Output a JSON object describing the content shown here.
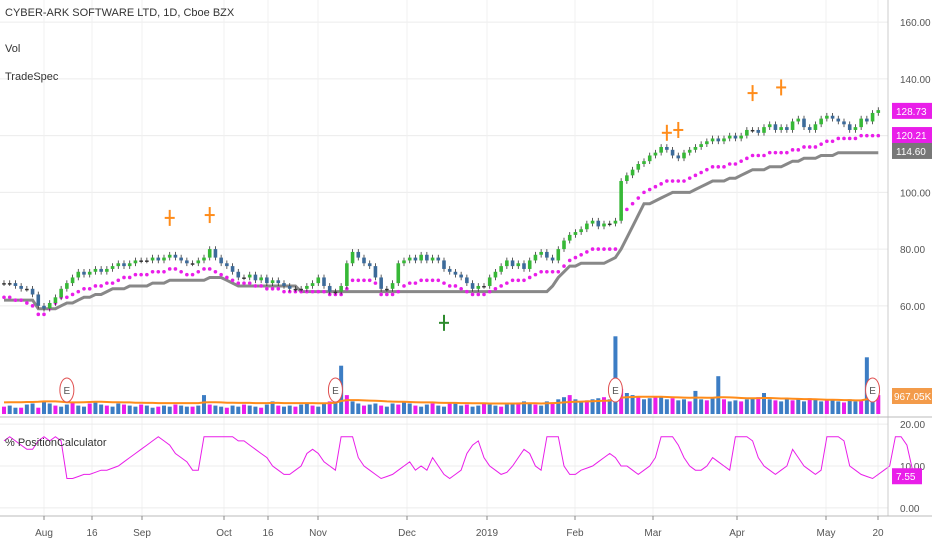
{
  "chart_data": [
    {
      "type": "line",
      "panel": "price",
      "title": "CYBER-ARK SOFTWARE LTD, 1D, Cboe BZX",
      "indicators": [
        "Vol",
        "TradeSpec"
      ],
      "ylim": [
        55,
        165
      ],
      "yticks": [
        "60.00",
        "80.00",
        "100.00",
        "120.00",
        "140.00",
        "160.00"
      ],
      "y_tick_values": [
        60,
        80,
        100,
        120,
        140,
        160
      ],
      "price_labels": [
        {
          "text": "128.73",
          "value": 128.73,
          "color": "#e91ee9"
        },
        {
          "text": "120.21",
          "value": 120.21,
          "color": "#e91ee9"
        },
        {
          "text": "114.60",
          "value": 114.6,
          "color": "#777777"
        }
      ],
      "close": [
        68,
        68,
        67,
        66,
        66,
        64,
        60,
        59,
        61,
        63,
        66,
        68,
        70,
        72,
        71,
        72,
        73,
        72,
        73,
        74,
        75,
        74,
        75,
        76,
        76,
        76,
        77,
        76,
        77,
        78,
        77,
        76,
        75,
        75,
        76,
        77,
        80,
        77,
        75,
        74,
        72,
        70,
        70,
        71,
        69,
        70,
        68,
        69,
        68,
        67,
        66,
        66,
        66,
        67,
        68,
        70,
        67,
        65,
        65,
        67,
        75,
        79,
        77,
        75,
        74,
        70,
        66,
        66,
        68,
        75,
        76,
        77,
        76,
        78,
        76,
        77,
        76,
        73,
        72,
        71,
        70,
        68,
        66,
        67,
        67,
        70,
        72,
        74,
        76,
        74,
        75,
        73,
        76,
        78,
        79,
        77,
        76,
        80,
        83,
        85,
        86,
        87,
        89,
        90,
        88,
        89,
        89,
        90,
        104,
        106,
        108,
        110,
        111,
        113,
        114,
        116,
        115,
        113,
        112,
        114,
        115,
        116,
        117,
        118,
        119,
        118,
        119,
        120,
        119,
        120,
        122,
        122,
        121,
        123,
        124,
        122,
        123,
        122,
        125,
        126,
        123,
        122,
        124,
        126,
        127,
        126,
        125,
        124,
        122,
        123,
        126,
        125,
        128,
        129
      ],
      "stop_magenta": [
        63,
        63,
        62,
        62,
        61,
        60,
        57,
        57,
        59,
        61,
        63,
        63,
        64,
        65,
        66,
        66,
        67,
        67,
        68,
        68,
        69,
        70,
        70,
        71,
        71,
        71,
        72,
        72,
        72,
        73,
        73,
        72,
        71,
        71,
        72,
        73,
        73,
        72,
        71,
        70,
        69,
        68,
        68,
        68,
        67,
        67,
        66,
        66,
        66,
        65,
        65,
        65,
        65,
        65,
        65,
        65,
        65,
        64,
        64,
        64,
        66,
        69,
        69,
        69,
        69,
        68,
        64,
        64,
        64,
        65,
        67,
        68,
        68,
        69,
        69,
        69,
        69,
        68,
        67,
        67,
        66,
        65,
        64,
        64,
        64,
        65,
        66,
        67,
        68,
        69,
        69,
        69,
        70,
        71,
        72,
        72,
        72,
        72,
        74,
        76,
        77,
        78,
        79,
        80,
        80,
        80,
        80,
        80,
        92,
        94,
        96,
        98,
        100,
        101,
        102,
        103,
        104,
        104,
        104,
        104,
        105,
        106,
        107,
        108,
        109,
        109,
        109,
        110,
        110,
        111,
        112,
        113,
        113,
        113,
        114,
        114,
        114,
        114,
        115,
        115,
        116,
        116,
        116,
        117,
        118,
        118,
        119,
        119,
        119,
        119,
        120,
        120,
        120,
        120
      ],
      "stop_gray": [
        62,
        62,
        62,
        62,
        62,
        62,
        59,
        59,
        59,
        59,
        60,
        61,
        61,
        62,
        63,
        63,
        64,
        64,
        65,
        66,
        66,
        66,
        67,
        67,
        67,
        67,
        68,
        68,
        68,
        69,
        69,
        69,
        69,
        69,
        69,
        69,
        70,
        70,
        70,
        69,
        68,
        67,
        67,
        67,
        67,
        67,
        67,
        67,
        67,
        67,
        67,
        67,
        65,
        65,
        65,
        65,
        65,
        65,
        65,
        65,
        65,
        65,
        65,
        65,
        65,
        65,
        65,
        65,
        65,
        65,
        65,
        65,
        65,
        65,
        65,
        65,
        65,
        65,
        65,
        65,
        65,
        65,
        65,
        65,
        65,
        65,
        65,
        65,
        65,
        65,
        65,
        65,
        65,
        65,
        65,
        65,
        67,
        70,
        72,
        74,
        74,
        75,
        75,
        75,
        75,
        75,
        76,
        77,
        80,
        84,
        88,
        92,
        96,
        96,
        97,
        98,
        99,
        100,
        100,
        100,
        100,
        101,
        102,
        103,
        104,
        104,
        104,
        105,
        105,
        106,
        107,
        108,
        108,
        108,
        109,
        109,
        109,
        110,
        111,
        111,
        112,
        112,
        112,
        113,
        113,
        113,
        114,
        114,
        114,
        114,
        114,
        114,
        114,
        114
      ],
      "markers": [
        {
          "type": "cross",
          "color": "#ff8c1a",
          "bar": 29,
          "value": 91
        },
        {
          "type": "cross",
          "color": "#ff8c1a",
          "bar": 36,
          "value": 92
        },
        {
          "type": "cross",
          "color": "#ff8c1a",
          "bar": 116,
          "value": 121
        },
        {
          "type": "cross",
          "color": "#ff8c1a",
          "bar": 118,
          "value": 122
        },
        {
          "type": "cross",
          "color": "#ff8c1a",
          "bar": 131,
          "value": 135
        },
        {
          "type": "cross",
          "color": "#ff8c1a",
          "bar": 136,
          "value": 137
        },
        {
          "type": "cross",
          "color": "#2e8b2e",
          "bar": 77,
          "value": 54
        }
      ]
    },
    {
      "type": "bar",
      "panel": "volume",
      "badge": "967.05K",
      "earnings_label": "E",
      "earnings_bars": [
        11,
        58,
        107,
        152
      ],
      "values": [
        0.35,
        0.4,
        0.3,
        0.3,
        0.45,
        0.5,
        0.3,
        0.6,
        0.5,
        0.4,
        0.35,
        0.45,
        0.55,
        0.4,
        0.35,
        0.5,
        0.6,
        0.45,
        0.4,
        0.35,
        0.5,
        0.45,
        0.4,
        0.35,
        0.45,
        0.4,
        0.3,
        0.35,
        0.4,
        0.35,
        0.45,
        0.4,
        0.35,
        0.35,
        0.4,
        0.9,
        0.45,
        0.4,
        0.35,
        0.3,
        0.4,
        0.35,
        0.45,
        0.4,
        0.35,
        0.3,
        0.45,
        0.6,
        0.4,
        0.35,
        0.4,
        0.35,
        0.45,
        0.5,
        0.4,
        0.35,
        0.5,
        0.6,
        0.9,
        2.3,
        0.9,
        0.6,
        0.5,
        0.4,
        0.45,
        0.5,
        0.4,
        0.35,
        0.5,
        0.45,
        0.6,
        0.5,
        0.4,
        0.35,
        0.45,
        0.5,
        0.4,
        0.35,
        0.55,
        0.5,
        0.4,
        0.45,
        0.35,
        0.4,
        0.5,
        0.45,
        0.4,
        0.35,
        0.45,
        0.5,
        0.55,
        0.6,
        0.5,
        0.45,
        0.4,
        0.6,
        0.55,
        0.7,
        0.8,
        0.9,
        0.7,
        0.6,
        0.65,
        0.7,
        0.75,
        0.8,
        0.7,
        3.7,
        1.2,
        1.0,
        0.9,
        0.8,
        0.7,
        0.75,
        0.8,
        0.85,
        0.7,
        0.75,
        0.65,
        0.7,
        0.6,
        1.1,
        0.7,
        0.65,
        0.75,
        1.8,
        0.7,
        0.6,
        0.65,
        0.6,
        0.7,
        0.75,
        0.8,
        1.0,
        0.7,
        0.65,
        0.6,
        0.7,
        0.65,
        0.7,
        0.6,
        0.75,
        0.7,
        0.6,
        0.65,
        0.7,
        0.6,
        0.55,
        0.7,
        0.6,
        0.65,
        2.7,
        1.1,
        0.9
      ],
      "ma": [
        0.55,
        0.56,
        0.56,
        0.56,
        0.57,
        0.57,
        0.58,
        0.6,
        0.6,
        0.6,
        0.58,
        0.56,
        0.55,
        0.55,
        0.56,
        0.57,
        0.58,
        0.58,
        0.57,
        0.56,
        0.56,
        0.55,
        0.55,
        0.54,
        0.54,
        0.53,
        0.53,
        0.52,
        0.52,
        0.52,
        0.52,
        0.52,
        0.52,
        0.52,
        0.52,
        0.55,
        0.56,
        0.56,
        0.55,
        0.54,
        0.54,
        0.53,
        0.53,
        0.53,
        0.52,
        0.52,
        0.52,
        0.53,
        0.53,
        0.52,
        0.52,
        0.52,
        0.52,
        0.52,
        0.52,
        0.51,
        0.51,
        0.52,
        0.54,
        0.62,
        0.66,
        0.66,
        0.66,
        0.65,
        0.64,
        0.63,
        0.62,
        0.6,
        0.59,
        0.58,
        0.58,
        0.57,
        0.56,
        0.55,
        0.55,
        0.55,
        0.54,
        0.53,
        0.53,
        0.53,
        0.52,
        0.52,
        0.51,
        0.51,
        0.51,
        0.5,
        0.5,
        0.5,
        0.5,
        0.5,
        0.5,
        0.51,
        0.51,
        0.51,
        0.5,
        0.51,
        0.52,
        0.53,
        0.55,
        0.57,
        0.58,
        0.59,
        0.6,
        0.61,
        0.62,
        0.63,
        0.64,
        0.75,
        0.78,
        0.8,
        0.81,
        0.82,
        0.82,
        0.82,
        0.82,
        0.82,
        0.81,
        0.8,
        0.79,
        0.78,
        0.77,
        0.78,
        0.78,
        0.77,
        0.77,
        0.8,
        0.8,
        0.79,
        0.78,
        0.76,
        0.75,
        0.75,
        0.75,
        0.76,
        0.76,
        0.75,
        0.74,
        0.74,
        0.73,
        0.72,
        0.71,
        0.71,
        0.7,
        0.69,
        0.68,
        0.68,
        0.67,
        0.66,
        0.66,
        0.65,
        0.65,
        0.7,
        0.72,
        0.73
      ]
    },
    {
      "type": "line",
      "panel": "position_calculator",
      "label": "% PositionCalculator",
      "ylim": [
        -1,
        21
      ],
      "yticks": [
        "0.00",
        "10.00",
        "20.00"
      ],
      "y_tick_values": [
        0,
        10,
        20
      ],
      "badge": "7.55",
      "badge_value": 7.55,
      "values": [
        16,
        17,
        16,
        15,
        14,
        14,
        16,
        17,
        16,
        17,
        16,
        7,
        7,
        7.5,
        8,
        8,
        8.5,
        9,
        9,
        9.5,
        10,
        11,
        12,
        13,
        14,
        15,
        16,
        17,
        16,
        15,
        13,
        12,
        11,
        9,
        9,
        17,
        17,
        17,
        17,
        17,
        17,
        16,
        16,
        15,
        14,
        13,
        12,
        10,
        9,
        8,
        8,
        9,
        10,
        13,
        14,
        13,
        11,
        10,
        9,
        17,
        17,
        17,
        12,
        10,
        9,
        8,
        7,
        7.5,
        8,
        9,
        10,
        11,
        9,
        10,
        9,
        12,
        10,
        8,
        7,
        8,
        9,
        13,
        15,
        16,
        12,
        10,
        9,
        8,
        8.5,
        10,
        12,
        14,
        13,
        10,
        9,
        17,
        17,
        17,
        10,
        8,
        8,
        9,
        9.5,
        10,
        11,
        12,
        13,
        12,
        10,
        10,
        9,
        8,
        9,
        10,
        12,
        17,
        17,
        17,
        15,
        12,
        10,
        9,
        9,
        10,
        12,
        11,
        10,
        9,
        17,
        17,
        17,
        16,
        12,
        10,
        9,
        8,
        9,
        10,
        14,
        12,
        10,
        9,
        8,
        9,
        17,
        17,
        17,
        16,
        10,
        9,
        8,
        7.5,
        7,
        8,
        9,
        10,
        17,
        17,
        15,
        9,
        7.5
      ]
    }
  ],
  "x_labels": [
    "Aug",
    "16",
    "Sep",
    "Oct",
    "16",
    "Nov",
    "Dec",
    "2019",
    "Feb",
    "Mar",
    "Apr",
    "May",
    "20"
  ],
  "colors": {
    "up": "#37b837",
    "down": "#3d6b9a",
    "neutral": "#e8d830",
    "magenta": "#e91ee9",
    "gray": "#888888",
    "orange": "#ff8c1a",
    "vol_blue": "#3c7dc4",
    "vol_magenta": "#e91ee9"
  }
}
